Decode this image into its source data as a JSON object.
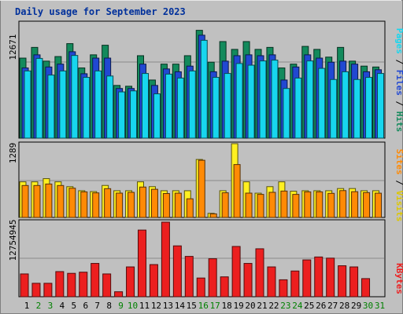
{
  "title": "Daily usage for September 2023",
  "colors": {
    "hits": "#138a5c",
    "files": "#2148d2",
    "pages": "#17d6ee",
    "visits": "#fff021",
    "sites": "#ff8a05",
    "kbytes": "#ec1f1f",
    "background": "#c0c0c0",
    "weekend_label": "#008000",
    "weekday_label": "#000000"
  },
  "chart_data": [
    {
      "type": "bar",
      "panel": "hits-files-pages",
      "scale_max_label": "12671",
      "ymax": 12671,
      "right_axis_labels": [
        "Pages",
        "Files",
        "Hits"
      ],
      "categories": [
        "1",
        "2",
        "3",
        "4",
        "5",
        "6",
        "7",
        "8",
        "9",
        "10",
        "11",
        "12",
        "13",
        "14",
        "15",
        "16",
        "17",
        "18",
        "19",
        "20",
        "21",
        "22",
        "23",
        "24",
        "25",
        "26",
        "27",
        "28",
        "29",
        "30",
        "31"
      ],
      "weekend": [
        false,
        true,
        true,
        false,
        false,
        false,
        false,
        false,
        true,
        true,
        false,
        false,
        false,
        false,
        false,
        true,
        true,
        false,
        false,
        false,
        false,
        false,
        true,
        true,
        false,
        false,
        false,
        false,
        false,
        true,
        true
      ],
      "series": [
        {
          "name": "Hits",
          "values": [
            8850,
            10036,
            8516,
            9023,
            10452,
            7764,
            9212,
            10274,
            5830,
            5741,
            9117,
            6428,
            8187,
            8187,
            9117,
            11924,
            8398,
            10679,
            9815,
            10679,
            9815,
            10036,
            7764,
            8187,
            10147,
            9815,
            8961,
            10036,
            8516,
            7967,
            7868
          ]
        },
        {
          "name": "Files",
          "values": [
            7764,
            9212,
            7868,
            8187,
            9553,
            7124,
            8850,
            8851,
            5493,
            5493,
            8187,
            5830,
            7653,
            7341,
            7967,
            11384,
            7341,
            8516,
            9117,
            9212,
            9117,
            9212,
            6428,
            7868,
            9212,
            8850,
            8398,
            8516,
            8187,
            7341,
            7564
          ]
        },
        {
          "name": "Pages",
          "values": [
            7431,
            8816,
            6977,
            7431,
            9144,
            6721,
            7432,
            6872,
            5116,
            5228,
            7153,
            4901,
            7081,
            6647,
            7432,
            10818,
            6721,
            7153,
            8256,
            8067,
            8540,
            8628,
            5493,
            6647,
            8540,
            7717,
            6487,
            7340,
            6487,
            6721,
            7153
          ]
        }
      ]
    },
    {
      "type": "bar",
      "panel": "visits-sites",
      "scale_max_label": "1289",
      "ymax": 1289,
      "right_axis_labels": [
        "Sites",
        "Visits"
      ],
      "categories": [
        "1",
        "2",
        "3",
        "4",
        "5",
        "6",
        "7",
        "8",
        "9",
        "10",
        "11",
        "12",
        "13",
        "14",
        "15",
        "16",
        "17",
        "18",
        "19",
        "20",
        "21",
        "22",
        "23",
        "24",
        "25",
        "26",
        "27",
        "28",
        "29",
        "30",
        "31"
      ],
      "series": [
        {
          "name": "Visits",
          "values": [
            622,
            622,
            678,
            622,
            538,
            467,
            452,
            559,
            467,
            467,
            622,
            538,
            467,
            467,
            467,
            1013,
            72,
            467,
            1289,
            622,
            424,
            538,
            622,
            458,
            467,
            467,
            467,
            505,
            505,
            467,
            467
          ]
        },
        {
          "name": "Sites",
          "values": [
            558,
            558,
            584,
            558,
            511,
            447,
            429,
            503,
            425,
            439,
            531,
            492,
            418,
            424,
            326,
            999,
            63,
            431,
            924,
            425,
            403,
            439,
            461,
            403,
            447,
            447,
            421,
            469,
            450,
            434,
            424
          ]
        }
      ]
    },
    {
      "type": "bar",
      "panel": "kbytes",
      "scale_max_label": "12754945",
      "ymax": 12754945,
      "right_axis_labels": [
        "KBytes"
      ],
      "categories": [
        "1",
        "2",
        "3",
        "4",
        "5",
        "6",
        "7",
        "8",
        "9",
        "10",
        "11",
        "12",
        "13",
        "14",
        "15",
        "16",
        "17",
        "18",
        "19",
        "20",
        "21",
        "22",
        "23",
        "24",
        "25",
        "26",
        "27",
        "28",
        "29",
        "30",
        "31"
      ],
      "series": [
        {
          "name": "KBytes",
          "values": [
            3900000,
            2300000,
            2300000,
            4300000,
            4000000,
            4200000,
            5700000,
            3900000,
            850000,
            5100000,
            11400000,
            5500000,
            12754945,
            8700000,
            6900000,
            3200000,
            6500000,
            3400000,
            8600000,
            5700000,
            8200000,
            5100000,
            2900000,
            4400000,
            6300000,
            6800000,
            6600000,
            5300000,
            5100000,
            3100000,
            0
          ]
        }
      ]
    }
  ]
}
